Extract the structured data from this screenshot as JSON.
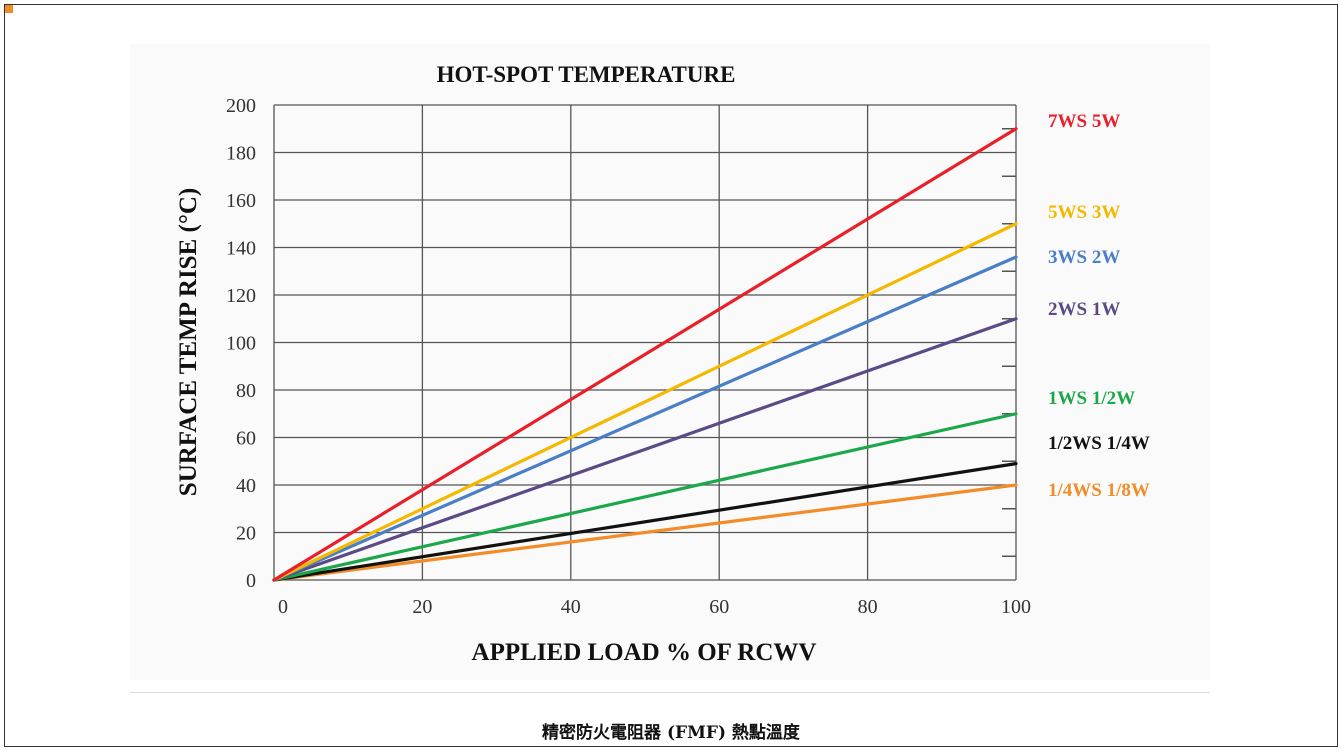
{
  "caption": "精密防火電阻器 (FMF) 熱點溫度",
  "colors": {
    "grid": "#555555",
    "background": "#fafafa",
    "accent": "#f28c28"
  },
  "chart_data": {
    "type": "line",
    "title": "HOT-SPOT TEMPERATURE",
    "xlabel": "APPLIED LOAD % OF RCWV",
    "ylabel": "SURFACE TEMP RISE (°C)",
    "xlim": [
      0,
      100
    ],
    "ylim": [
      0,
      200
    ],
    "xticks": [
      0,
      20,
      40,
      60,
      80,
      100
    ],
    "yticks": [
      0,
      20,
      40,
      60,
      80,
      100,
      120,
      140,
      160,
      180,
      200
    ],
    "grid": true,
    "legend_placement": "right",
    "series": [
      {
        "name": "7WS 5W",
        "color": "#e8202a",
        "x": [
          0,
          100
        ],
        "y": [
          0,
          190
        ]
      },
      {
        "name": "5WS 3W",
        "color": "#f5b800",
        "x": [
          0,
          100
        ],
        "y": [
          0,
          150
        ]
      },
      {
        "name": "3WS 2W",
        "color": "#4a7fc8",
        "x": [
          0,
          100
        ],
        "y": [
          0,
          136
        ]
      },
      {
        "name": "2WS 1W",
        "color": "#5b4a86",
        "x": [
          0,
          100
        ],
        "y": [
          0,
          110
        ]
      },
      {
        "name": "1WS 1/2W",
        "color": "#1aa84a",
        "x": [
          0,
          100
        ],
        "y": [
          0,
          70
        ]
      },
      {
        "name": "1/2WS 1/4W",
        "color": "#111111",
        "x": [
          0,
          100
        ],
        "y": [
          0,
          49
        ]
      },
      {
        "name": "1/4WS 1/8W",
        "color": "#f28c28",
        "x": [
          0,
          100
        ],
        "y": [
          0,
          40
        ]
      }
    ]
  }
}
